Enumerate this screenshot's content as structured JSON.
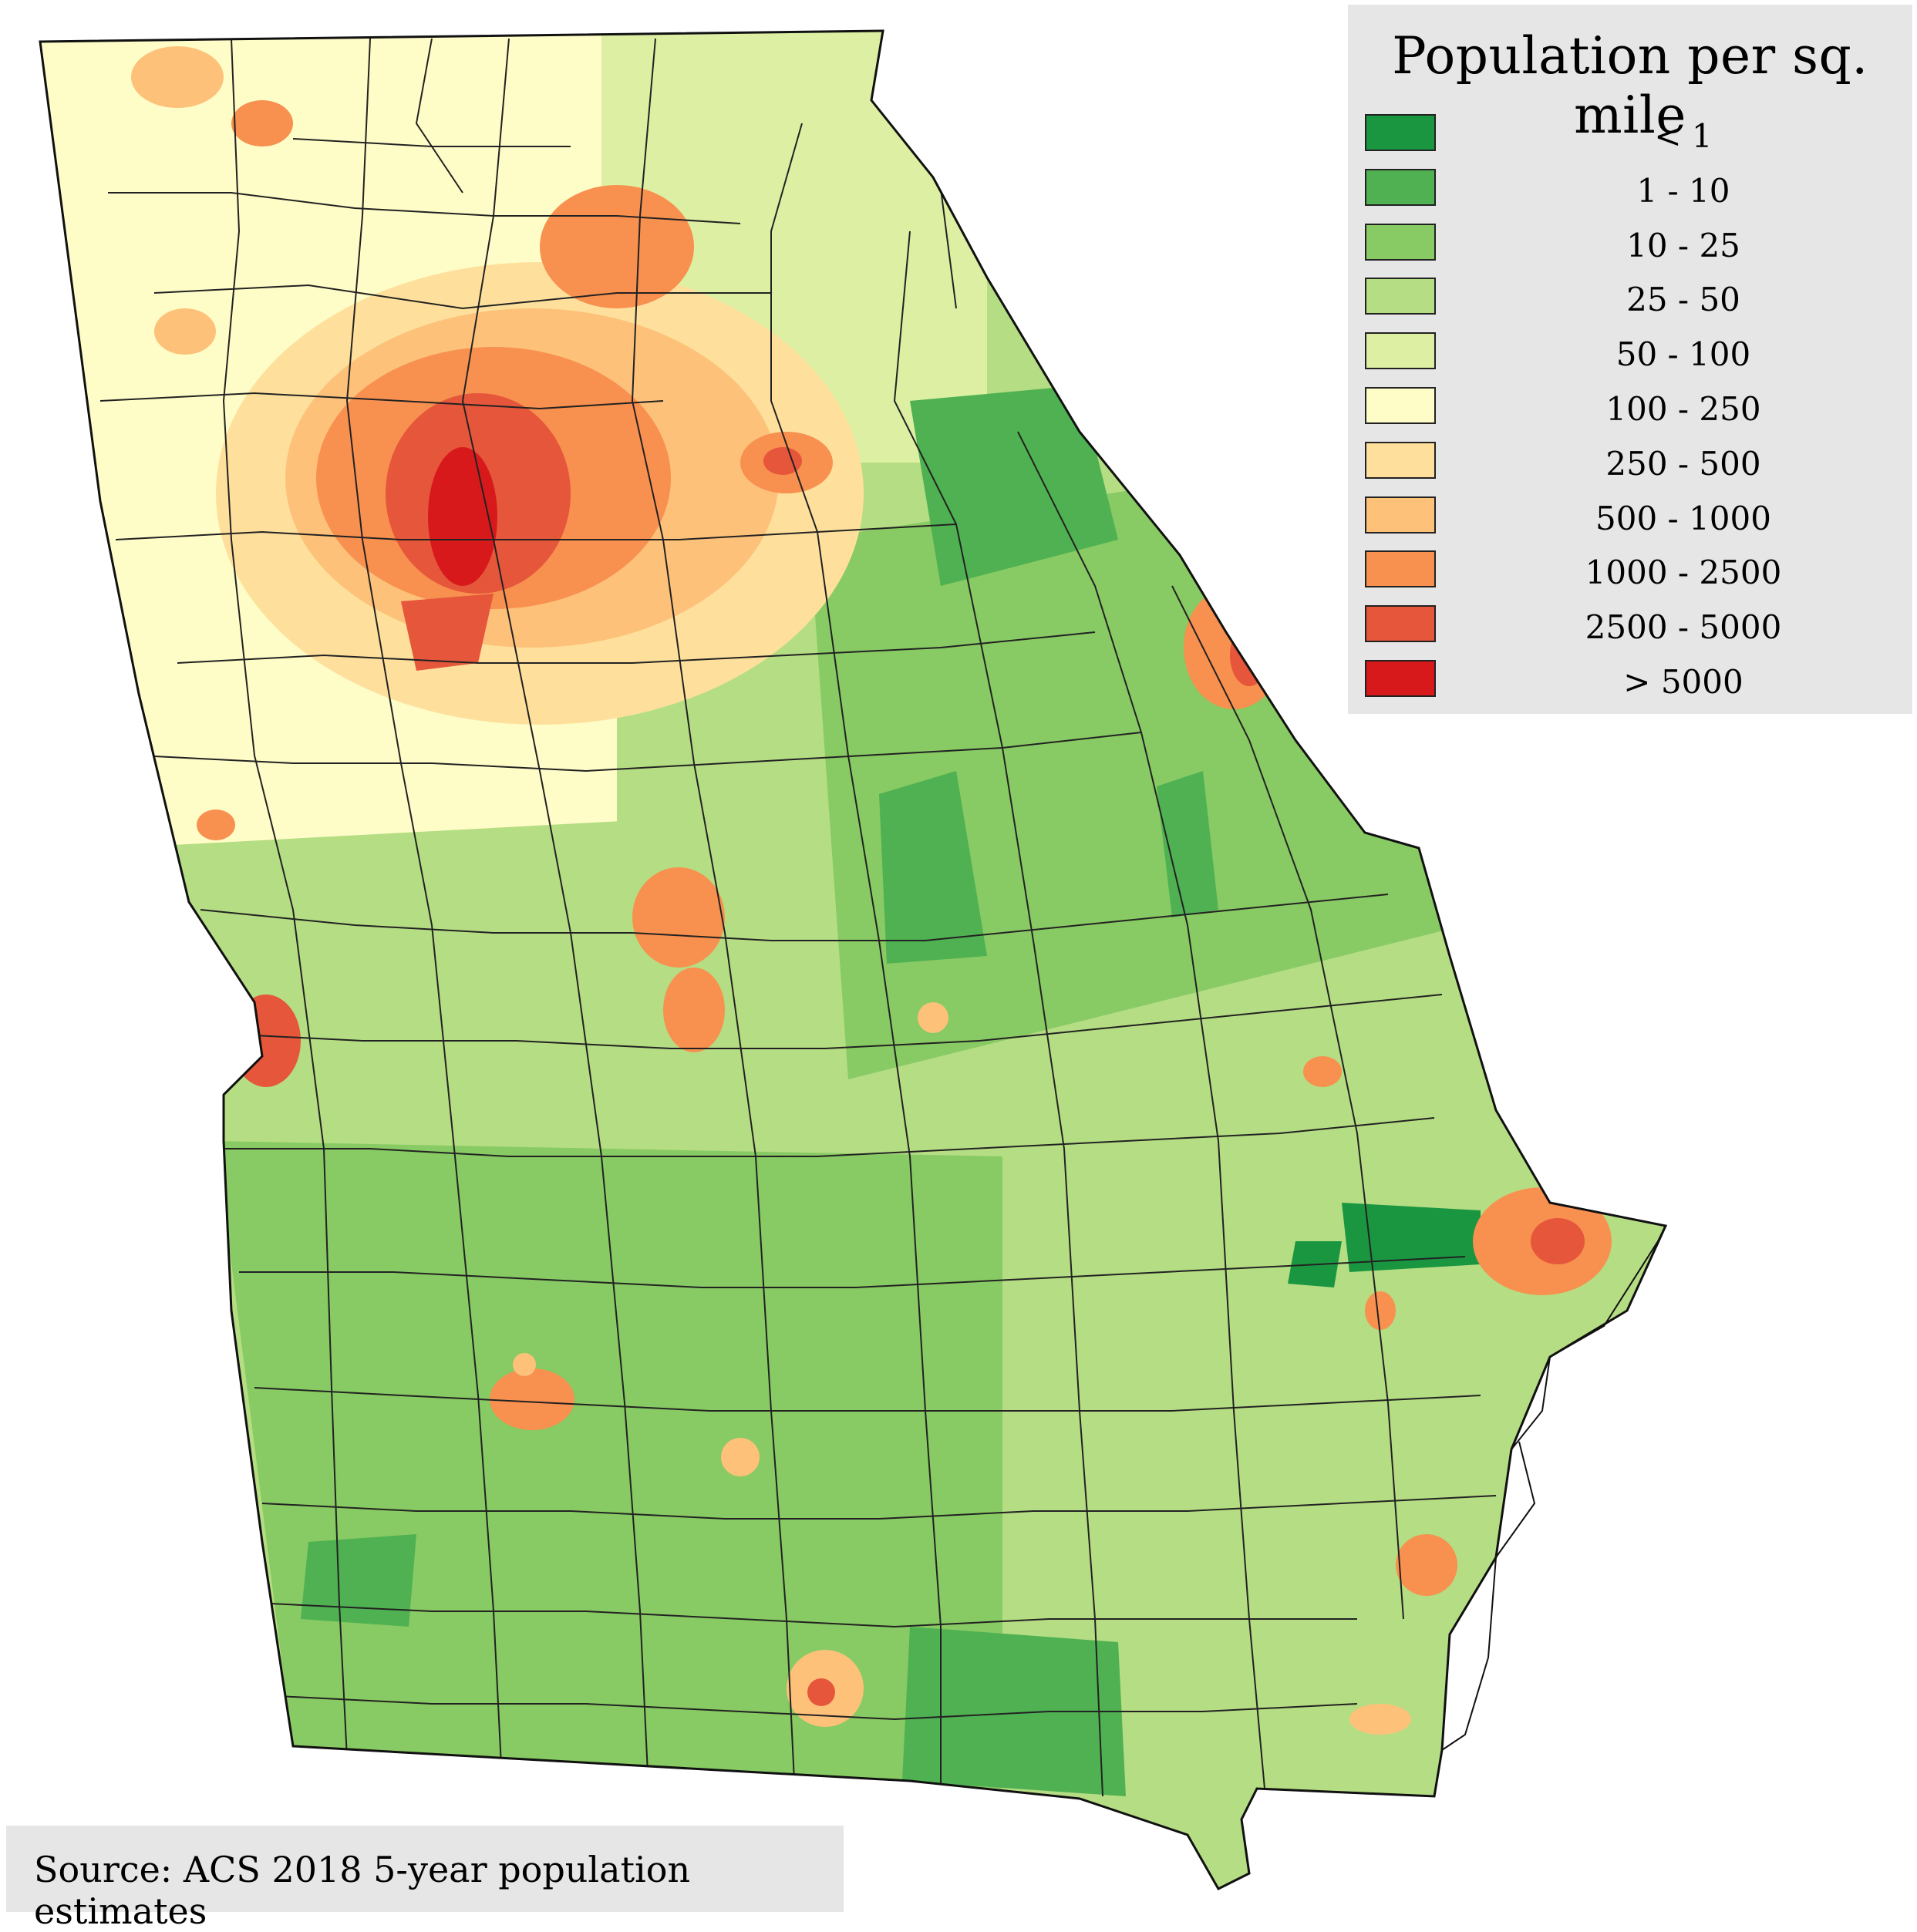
{
  "legend": {
    "title": "Population per sq. mile",
    "items": [
      {
        "label": "< 1",
        "color": "#1a9641"
      },
      {
        "label": "1 - 10",
        "color": "#4fb152"
      },
      {
        "label": "10 - 25",
        "color": "#88ca63"
      },
      {
        "label": "25 - 50",
        "color": "#b5dd83"
      },
      {
        "label": "50 - 100",
        "color": "#dcefa3"
      },
      {
        "label": "100 - 250",
        "color": "#fefcc7"
      },
      {
        "label": "250 - 500",
        "color": "#fee09c"
      },
      {
        "label": "500 - 1000",
        "color": "#fdc17a"
      },
      {
        "label": "1000 - 2500",
        "color": "#f8904f"
      },
      {
        "label": "2500 - 5000",
        "color": "#e5563b"
      },
      {
        "label": "> 5000",
        "color": "#d7191c"
      }
    ]
  },
  "source": "Source: ACS 2018 5-year population estimates",
  "map": {
    "region": "Georgia",
    "background": "#ffffff",
    "border_color": "#222222"
  }
}
